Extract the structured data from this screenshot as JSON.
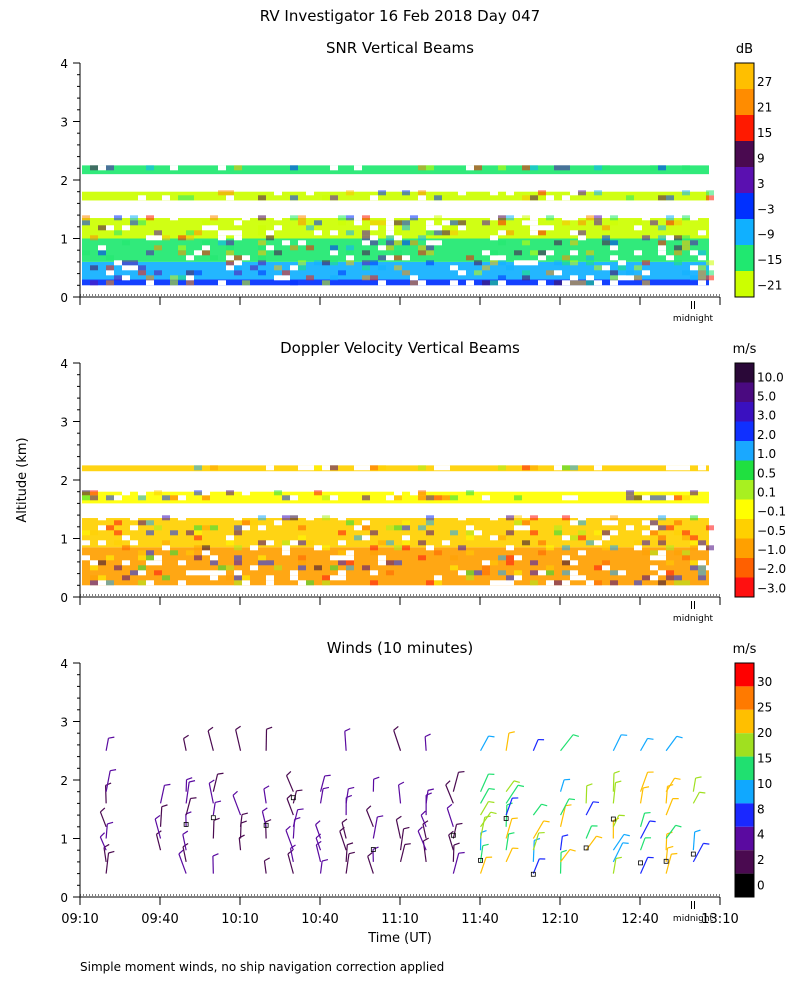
{
  "figure": {
    "title": "RV Investigator  16 Feb 2018 Day 047",
    "ylabel": "Altitude (km)",
    "xlabel": "Time (UT)",
    "x_ticks": [
      "09:10",
      "09:40",
      "10:10",
      "10:40",
      "11:10",
      "11:40",
      "12:10",
      "12:40",
      "13:10"
    ],
    "midnight_label": "midnight",
    "footnote": "Simple moment winds, no ship navigation correction applied"
  },
  "chart_data": [
    {
      "type": "heatmap",
      "title": "SNR Vertical Beams",
      "units": "dB",
      "ylim": [
        0,
        4
      ],
      "y_ticks": [
        "0",
        "1",
        "2",
        "3",
        "4"
      ],
      "xlim": [
        "09:10",
        "13:10"
      ],
      "colorbar": {
        "labels": [
          "27",
          "21",
          "15",
          "9",
          "3",
          "−3",
          "−9",
          "−15",
          "−21"
        ],
        "colors": [
          "#ffbf00",
          "#ff8c00",
          "#ff1a00",
          "#4a0a50",
          "#5a10b0",
          "#0030ff",
          "#10b0ff",
          "#20e870",
          "#ccff00"
        ]
      },
      "layers": [
        {
          "from_km": 0.2,
          "to_km": 0.3,
          "value_db": -3
        },
        {
          "from_km": 0.3,
          "to_km": 0.6,
          "value_db": -9
        },
        {
          "from_km": 0.6,
          "to_km": 1.0,
          "value_db": -15
        },
        {
          "from_km": 1.0,
          "to_km": 1.35,
          "value_db": -21
        },
        {
          "from_km": 1.65,
          "to_km": 1.8,
          "value_db": -21
        },
        {
          "from_km": 2.1,
          "to_km": 2.25,
          "value_db": -15
        }
      ]
    },
    {
      "type": "heatmap",
      "title": "Doppler Velocity Vertical Beams",
      "units": "m/s",
      "ylim": [
        0,
        4
      ],
      "y_ticks": [
        "0",
        "1",
        "2",
        "3",
        "4"
      ],
      "xlim": [
        "09:10",
        "13:10"
      ],
      "colorbar": {
        "labels": [
          "10.0",
          "5.0",
          "3.0",
          "2.0",
          "1.0",
          "0.5",
          "0.1",
          "−0.1",
          "−0.5",
          "−1.0",
          "−2.0",
          "−3.0"
        ],
        "colors": [
          "#2a0838",
          "#4a0a80",
          "#3a10c0",
          "#1030ff",
          "#1aa8ff",
          "#20e040",
          "#a8f020",
          "#ffff00",
          "#ffd000",
          "#ffa000",
          "#ff6000",
          "#ff1010"
        ]
      },
      "layers": [
        {
          "from_km": 0.2,
          "to_km": 0.85,
          "value_ms": -1.0
        },
        {
          "from_km": 0.85,
          "to_km": 1.35,
          "value_ms": -0.5
        },
        {
          "from_km": 1.6,
          "to_km": 1.8,
          "value_ms": -0.1
        },
        {
          "from_km": 2.15,
          "to_km": 2.25,
          "value_ms": -0.5
        }
      ]
    },
    {
      "type": "scatter",
      "title": "Winds (10 minutes)",
      "units": "m/s",
      "ylim": [
        0,
        4
      ],
      "y_ticks": [
        "0",
        "1",
        "2",
        "3",
        "4"
      ],
      "xlim": [
        "09:10",
        "13:10"
      ],
      "colorbar": {
        "labels": [
          "30",
          "25",
          "20",
          "15",
          "10",
          "8",
          "4",
          "2",
          "0"
        ],
        "colors": [
          "#ff0000",
          "#ff7a00",
          "#ffbf00",
          "#a0e020",
          "#20e070",
          "#10a8ff",
          "#1a28ff",
          "#5a0aa0",
          "#4a0a50",
          "#000000"
        ]
      },
      "barb_times_hours": [
        9.33,
        9.67,
        9.83,
        10.0,
        10.17,
        10.33,
        10.5,
        10.67,
        10.83,
        11.0,
        11.17,
        11.33,
        11.5,
        11.67,
        11.83,
        12.0,
        12.17,
        12.33,
        12.5,
        12.67,
        12.83,
        13.0
      ],
      "barb_heights_km": [
        0.4,
        0.6,
        0.8,
        1.0,
        1.2,
        1.4,
        1.6,
        1.8,
        2.5
      ]
    }
  ]
}
